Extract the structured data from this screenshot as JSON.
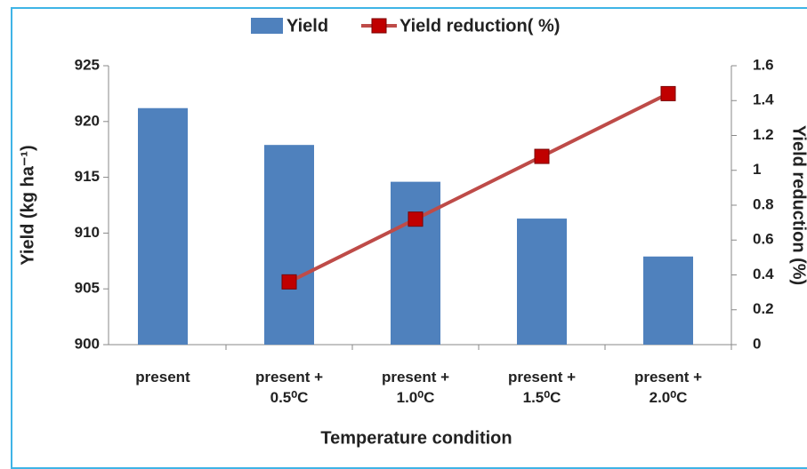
{
  "chart_data": {
    "type": "bar-line",
    "xlabel": "Temperature condition",
    "ylabel": "Yield (kg ha⁻¹)",
    "y2label": "Yield reduction (%)",
    "categories": [
      "present",
      "present + 0.5⁰C",
      "present + 1.0⁰C",
      "present + 1.5⁰C",
      "present + 2.0⁰C"
    ],
    "series": [
      {
        "name": "Yield",
        "type": "bar",
        "color": "#4f81bd",
        "values": [
          921.2,
          917.9,
          914.6,
          911.3,
          907.9
        ]
      },
      {
        "name": "Yield reduction( %)",
        "type": "line",
        "axis": "y2",
        "color": "#be4b48",
        "marker_color": "#c00000",
        "values": [
          null,
          0.36,
          0.72,
          1.08,
          1.44
        ]
      }
    ],
    "ylim": [
      900,
      925
    ],
    "yticks": [
      900,
      905,
      910,
      915,
      920,
      925
    ],
    "y2lim": [
      0,
      1.6
    ],
    "y2ticks": [
      0,
      0.2,
      0.4,
      0.6,
      0.8,
      1,
      1.2,
      1.4,
      1.6
    ],
    "grid": false,
    "legend": "top"
  }
}
